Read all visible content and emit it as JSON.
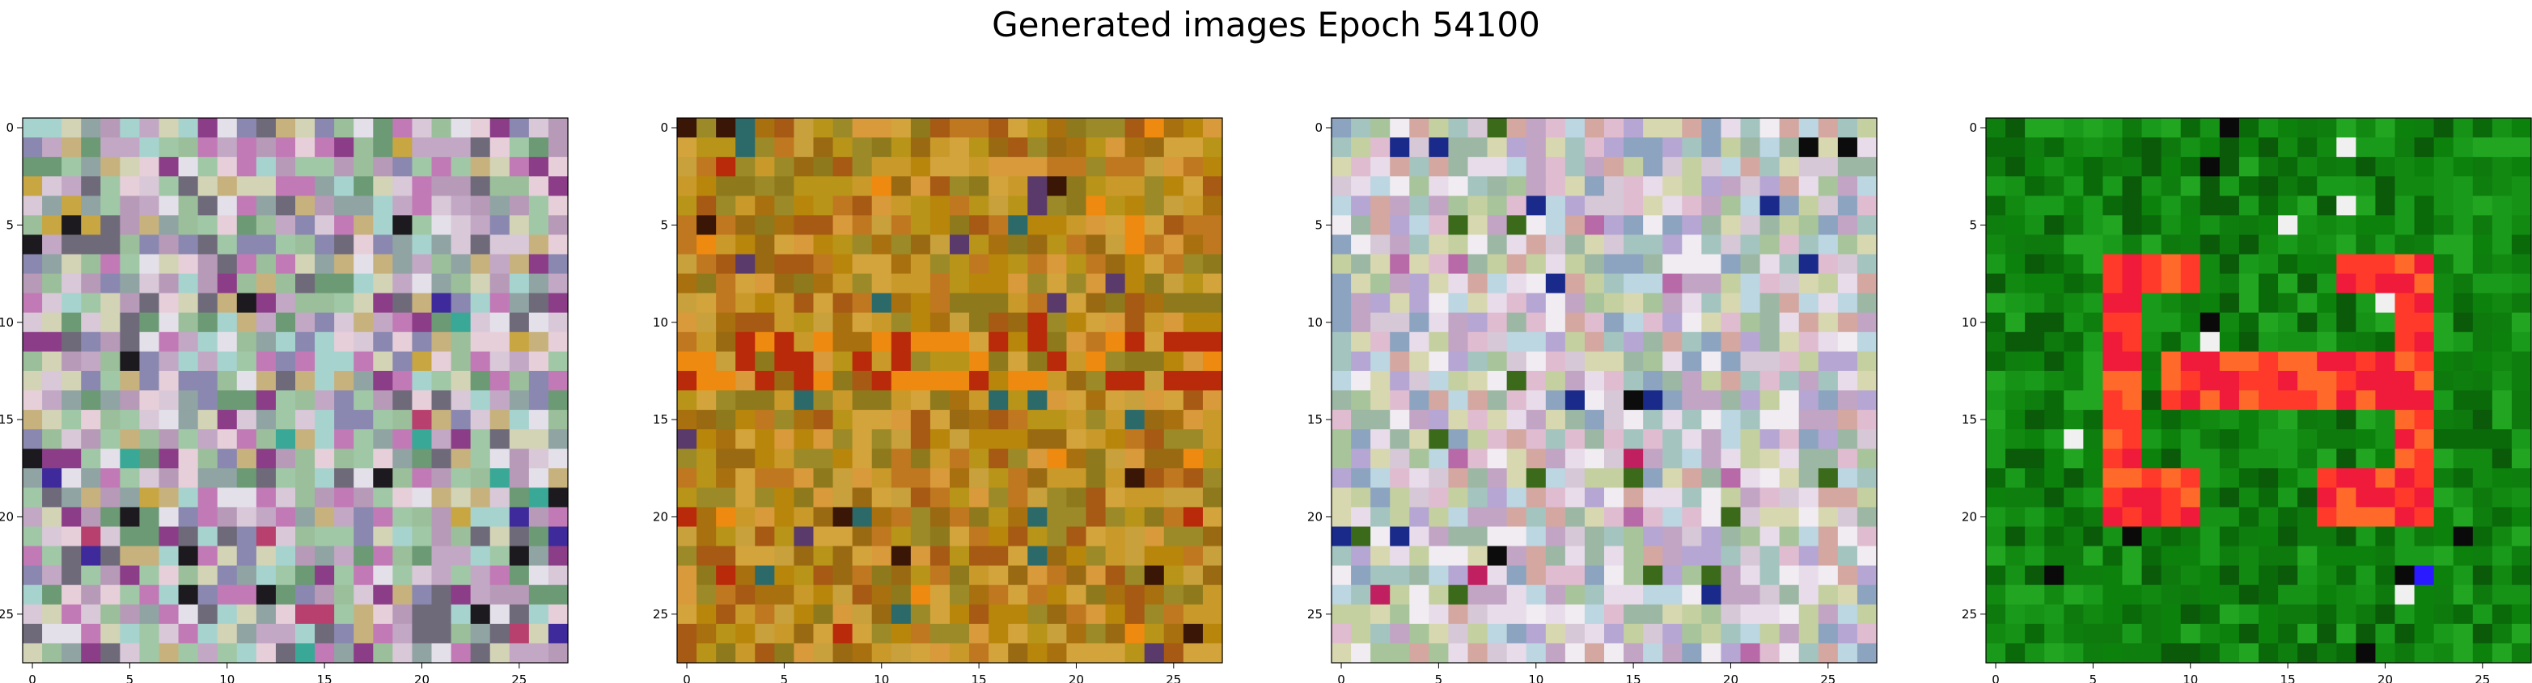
{
  "title": "Generated images Epoch 54100",
  "chart_data": {
    "type": "heatmap",
    "title": "Generated images Epoch 54100",
    "grid": false,
    "panels": [
      {
        "name": "",
        "size": 28,
        "xticks": [
          "0",
          "5",
          "10",
          "15",
          "20",
          "25"
        ],
        "yticks": [
          "0",
          "5",
          "10",
          "15",
          "20",
          "25"
        ],
        "palette": [
          "#c2a8c4",
          "#9bbf9a",
          "#d8c8d8",
          "#8fa4a3",
          "#b79ab8",
          "#e4e0ea",
          "#a0c8a6",
          "#8a88b0",
          "#c7b27e",
          "#6b9a74",
          "#c27ab6",
          "#a7d3cf",
          "#d3d3b6",
          "#8c3d88",
          "#6f6a7a",
          "#e7cfd9"
        ],
        "accent": [
          "#1c1a1e",
          "#3e2a9a",
          "#c8a642",
          "#3aa896",
          "#b8406e"
        ]
      },
      {
        "name": "",
        "size": 28,
        "xticks": [
          "0",
          "5",
          "10",
          "15",
          "20",
          "25"
        ],
        "yticks": [
          "0",
          "5",
          "10",
          "15",
          "20",
          "25"
        ],
        "palette": [
          "#b8860b",
          "#c99a2a",
          "#a8700e",
          "#d4a43c",
          "#9a6a12",
          "#c07820",
          "#b89418",
          "#8e7a1c",
          "#d89a3a",
          "#a65a14",
          "#c8a03c",
          "#9c8a28"
        ],
        "accent": [
          "#3a1606",
          "#b82a0a",
          "#5a3a6a",
          "#2c6a6a",
          "#ee8a10"
        ]
      },
      {
        "name": "",
        "size": 28,
        "xticks": [
          "0",
          "5",
          "10",
          "15",
          "20",
          "25"
        ],
        "yticks": [
          "0",
          "5",
          "10",
          "15",
          "20",
          "25"
        ],
        "palette": [
          "#d6c8d6",
          "#a8c49a",
          "#bcd6e2",
          "#c2a4c4",
          "#d8d8b0",
          "#9cb8a4",
          "#e8dcea",
          "#b6a6d4",
          "#a4c4c0",
          "#e0bcd0",
          "#c4d0a0",
          "#8ca4c0",
          "#f0ecf2",
          "#d4a8a0"
        ],
        "accent": [
          "#0c0c0c",
          "#1a2a8a",
          "#c02060",
          "#3a6a1a",
          "#b86aa8"
        ]
      },
      {
        "name": "",
        "size": 28,
        "xticks": [
          "0",
          "5",
          "10",
          "15",
          "20",
          "25"
        ],
        "yticks": [
          "0",
          "5",
          "10",
          "15",
          "20",
          "25"
        ],
        "palette": [
          "#128a12",
          "#0e7a0e",
          "#1a9a1a",
          "#0a6a0a",
          "#169216",
          "#0c820c",
          "#22a622",
          "#0e7e0e",
          "#0a5a0a"
        ],
        "accent": [
          "#ff3a2a",
          "#f01a3a",
          "#ff6a2a",
          "#e8b030",
          "#2a1aff",
          "#f0f0f0",
          "#0a0a0a"
        ]
      }
    ]
  }
}
